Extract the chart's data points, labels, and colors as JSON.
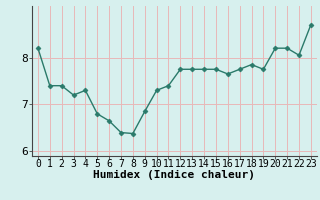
{
  "x": [
    0,
    1,
    2,
    3,
    4,
    5,
    6,
    7,
    8,
    9,
    10,
    11,
    12,
    13,
    14,
    15,
    16,
    17,
    18,
    19,
    20,
    21,
    22,
    23
  ],
  "y": [
    8.2,
    7.4,
    7.4,
    7.2,
    7.3,
    6.8,
    6.65,
    6.4,
    6.38,
    6.85,
    7.3,
    7.4,
    7.75,
    7.75,
    7.75,
    7.75,
    7.65,
    7.75,
    7.85,
    7.75,
    8.2,
    8.2,
    8.05,
    8.7
  ],
  "line_color": "#2a7a6a",
  "marker": "D",
  "marker_size": 2.5,
  "bg_color": "#d7f0ee",
  "grid_color": "#e8b8b8",
  "xlabel": "Humidex (Indice chaleur)",
  "ylim": [
    5.9,
    9.1
  ],
  "yticks": [
    6,
    7,
    8
  ],
  "xlim": [
    -0.5,
    23.5
  ],
  "xlabel_fontsize": 8,
  "tick_fontsize": 7,
  "linewidth": 1.0
}
